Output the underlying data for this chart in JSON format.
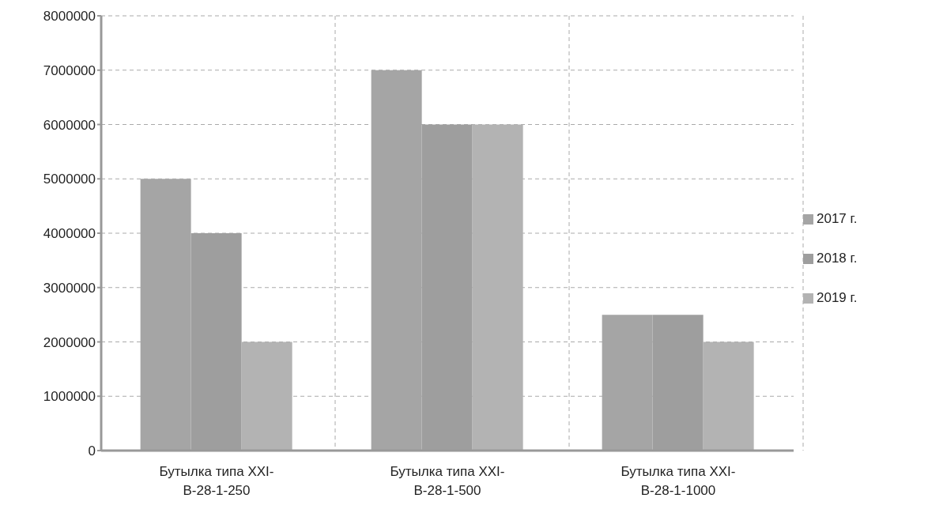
{
  "chart_data": {
    "type": "bar",
    "categories": [
      "Бутылка типа XXI-B-28-1-250",
      "Бутылка типа XXI-B-28-1-500",
      "Бутылка типа XXI-B-28-1-1000"
    ],
    "series": [
      {
        "name": "2017 г.",
        "color": "#a5a5a5",
        "values": [
          5000000,
          7000000,
          2500000
        ]
      },
      {
        "name": "2018 г.",
        "color": "#9e9e9e",
        "values": [
          4000000,
          6000000,
          2500000
        ]
      },
      {
        "name": "2019 г.",
        "color": "#b3b3b3",
        "values": [
          2000000,
          6000000,
          2000000
        ]
      }
    ],
    "ylim": [
      0,
      8000000
    ],
    "yticks": [
      0,
      1000000,
      2000000,
      3000000,
      4000000,
      5000000,
      6000000,
      7000000,
      8000000
    ],
    "grid": true,
    "legend": "right"
  }
}
